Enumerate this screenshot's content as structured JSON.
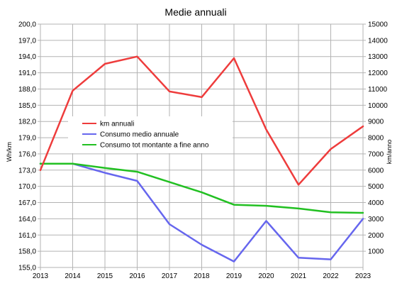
{
  "chart_data": {
    "type": "line",
    "title": "Medie annuali",
    "ylabel": "Wh/km",
    "y2label": "km/anno",
    "x": [
      "2013",
      "2014",
      "2015",
      "2016",
      "2017",
      "2018",
      "2019",
      "2020",
      "2021",
      "2022",
      "2023"
    ],
    "ylim": [
      155.0,
      200.0
    ],
    "yticks": [
      "155,0",
      "158,0",
      "161,0",
      "164,0",
      "167,0",
      "170,0",
      "173,0",
      "176,0",
      "179,0",
      "182,0",
      "185,0",
      "188,0",
      "191,0",
      "194,0",
      "197,0",
      "200,0"
    ],
    "y2lim": [
      0,
      15000
    ],
    "y2ticks": [
      "1000",
      "2000",
      "3000",
      "4000",
      "5000",
      "6000",
      "7000",
      "8000",
      "9000",
      "10000",
      "11000",
      "12000",
      "13000",
      "14000",
      "15000"
    ],
    "grid": true,
    "legend_position": "center-left",
    "series": [
      {
        "name": "km annuali",
        "axis": "right",
        "color": "#ee3c3c",
        "values": [
          6000,
          10900,
          12550,
          13000,
          10850,
          10500,
          12900,
          8500,
          5100,
          7300,
          8700
        ]
      },
      {
        "name": "Consumo medio annuale",
        "axis": "left",
        "color": "#6666ee",
        "values": [
          174.2,
          174.2,
          172.5,
          171.0,
          163.0,
          159.2,
          156.1,
          163.6,
          156.8,
          156.5,
          164.0
        ]
      },
      {
        "name": "Consumo tot montante a fine anno",
        "axis": "left",
        "color": "#22c022",
        "values": [
          174.2,
          174.2,
          173.4,
          172.7,
          170.8,
          168.9,
          166.6,
          166.4,
          165.9,
          165.2,
          165.1
        ]
      }
    ]
  }
}
